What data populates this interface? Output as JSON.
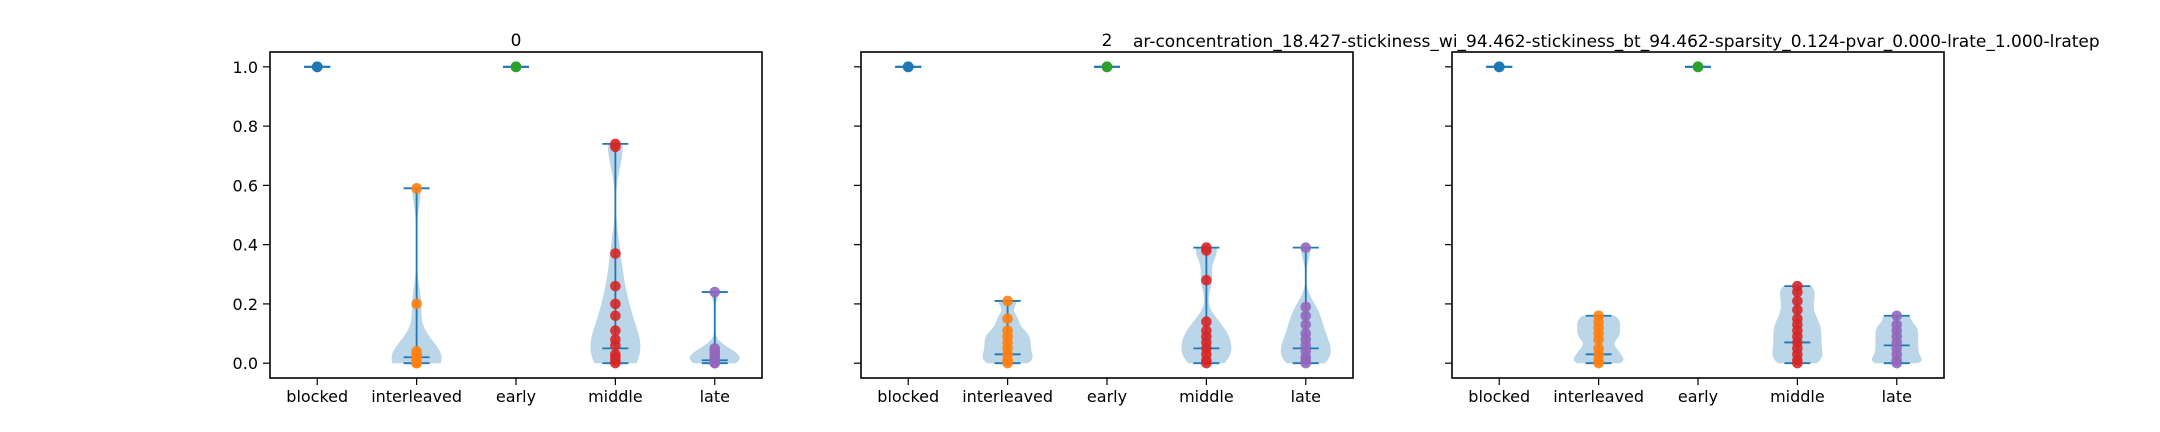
{
  "figure": {
    "suptitle": "ar-concentration_18.427-stickiness_wi_94.462-stickiness_bt_94.462-sparsity_0.124-pvar_0.000-lrate_1.000-lratep"
  },
  "colors": {
    "blocked": "#1f77b4",
    "interleaved": "#ff7f0e",
    "early": "#2ca02c",
    "middle": "#d62728",
    "late": "#9467bd",
    "violin_fill": "#1f77b4",
    "stat_line": "#1f77b4"
  },
  "chart_data": [
    {
      "type": "violin",
      "title": "0",
      "categories": [
        "blocked",
        "interleaved",
        "early",
        "middle",
        "late"
      ],
      "ylim": [
        -0.05,
        1.05
      ],
      "yticks": [
        "0.0",
        "0.2",
        "0.4",
        "0.6",
        "0.8",
        "1.0"
      ],
      "show_yticklabels": true,
      "grid": false,
      "series": [
        {
          "category": "blocked",
          "min": 1.0,
          "max": 1.0,
          "median": 1.0,
          "points": [
            1.0,
            1.0,
            1.0,
            1.0
          ]
        },
        {
          "category": "interleaved",
          "min": 0.0,
          "max": 0.59,
          "median": 0.02,
          "points": [
            0.0,
            0.0,
            0.01,
            0.02,
            0.03,
            0.04,
            0.2,
            0.59
          ]
        },
        {
          "category": "early",
          "min": 1.0,
          "max": 1.0,
          "median": 1.0,
          "points": [
            1.0,
            1.0,
            1.0,
            1.0
          ]
        },
        {
          "category": "middle",
          "min": 0.0,
          "max": 0.74,
          "median": 0.05,
          "points": [
            0.0,
            0.01,
            0.02,
            0.03,
            0.06,
            0.08,
            0.11,
            0.16,
            0.2,
            0.26,
            0.37,
            0.73,
            0.74
          ]
        },
        {
          "category": "late",
          "min": 0.0,
          "max": 0.24,
          "median": 0.01,
          "points": [
            0.0,
            0.0,
            0.01,
            0.01,
            0.02,
            0.03,
            0.04,
            0.05,
            0.24
          ]
        }
      ]
    },
    {
      "type": "violin",
      "title": "2",
      "categories": [
        "blocked",
        "interleaved",
        "early",
        "middle",
        "late"
      ],
      "ylim": [
        -0.05,
        1.05
      ],
      "yticks": [
        "0.0",
        "0.2",
        "0.4",
        "0.6",
        "0.8",
        "1.0"
      ],
      "show_yticklabels": false,
      "grid": false,
      "series": [
        {
          "category": "blocked",
          "min": 1.0,
          "max": 1.0,
          "median": 1.0,
          "points": [
            1.0,
            1.0,
            1.0,
            1.0
          ]
        },
        {
          "category": "interleaved",
          "min": 0.0,
          "max": 0.21,
          "median": 0.03,
          "points": [
            0.0,
            0.01,
            0.03,
            0.05,
            0.07,
            0.09,
            0.11,
            0.15,
            0.21
          ]
        },
        {
          "category": "early",
          "min": 1.0,
          "max": 1.0,
          "median": 1.0,
          "points": [
            1.0,
            1.0,
            1.0,
            1.0
          ]
        },
        {
          "category": "middle",
          "min": 0.0,
          "max": 0.39,
          "median": 0.05,
          "points": [
            0.0,
            0.01,
            0.03,
            0.05,
            0.07,
            0.09,
            0.11,
            0.14,
            0.28,
            0.38,
            0.39
          ]
        },
        {
          "category": "late",
          "min": 0.0,
          "max": 0.39,
          "median": 0.05,
          "points": [
            0.0,
            0.01,
            0.02,
            0.04,
            0.06,
            0.08,
            0.1,
            0.13,
            0.16,
            0.19,
            0.39
          ]
        }
      ]
    },
    {
      "type": "violin",
      "title": "",
      "categories": [
        "blocked",
        "interleaved",
        "early",
        "middle",
        "late"
      ],
      "ylim": [
        -0.05,
        1.05
      ],
      "yticks": [
        "0.0",
        "0.2",
        "0.4",
        "0.6",
        "0.8",
        "1.0"
      ],
      "show_yticklabels": false,
      "grid": false,
      "series": [
        {
          "category": "blocked",
          "min": 1.0,
          "max": 1.0,
          "median": 1.0,
          "points": [
            1.0,
            1.0,
            1.0,
            1.0
          ]
        },
        {
          "category": "interleaved",
          "min": 0.0,
          "max": 0.16,
          "median": 0.03,
          "points": [
            0.0,
            0.01,
            0.03,
            0.05,
            0.08,
            0.1,
            0.12,
            0.14,
            0.16
          ]
        },
        {
          "category": "early",
          "min": 1.0,
          "max": 1.0,
          "median": 1.0,
          "points": [
            1.0,
            1.0,
            1.0,
            1.0
          ]
        },
        {
          "category": "middle",
          "min": 0.0,
          "max": 0.26,
          "median": 0.07,
          "points": [
            0.0,
            0.01,
            0.03,
            0.05,
            0.07,
            0.09,
            0.11,
            0.13,
            0.15,
            0.18,
            0.21,
            0.24,
            0.26
          ]
        },
        {
          "category": "late",
          "min": 0.0,
          "max": 0.16,
          "median": 0.06,
          "points": [
            0.0,
            0.01,
            0.03,
            0.05,
            0.07,
            0.09,
            0.11,
            0.13,
            0.16
          ]
        }
      ]
    }
  ]
}
